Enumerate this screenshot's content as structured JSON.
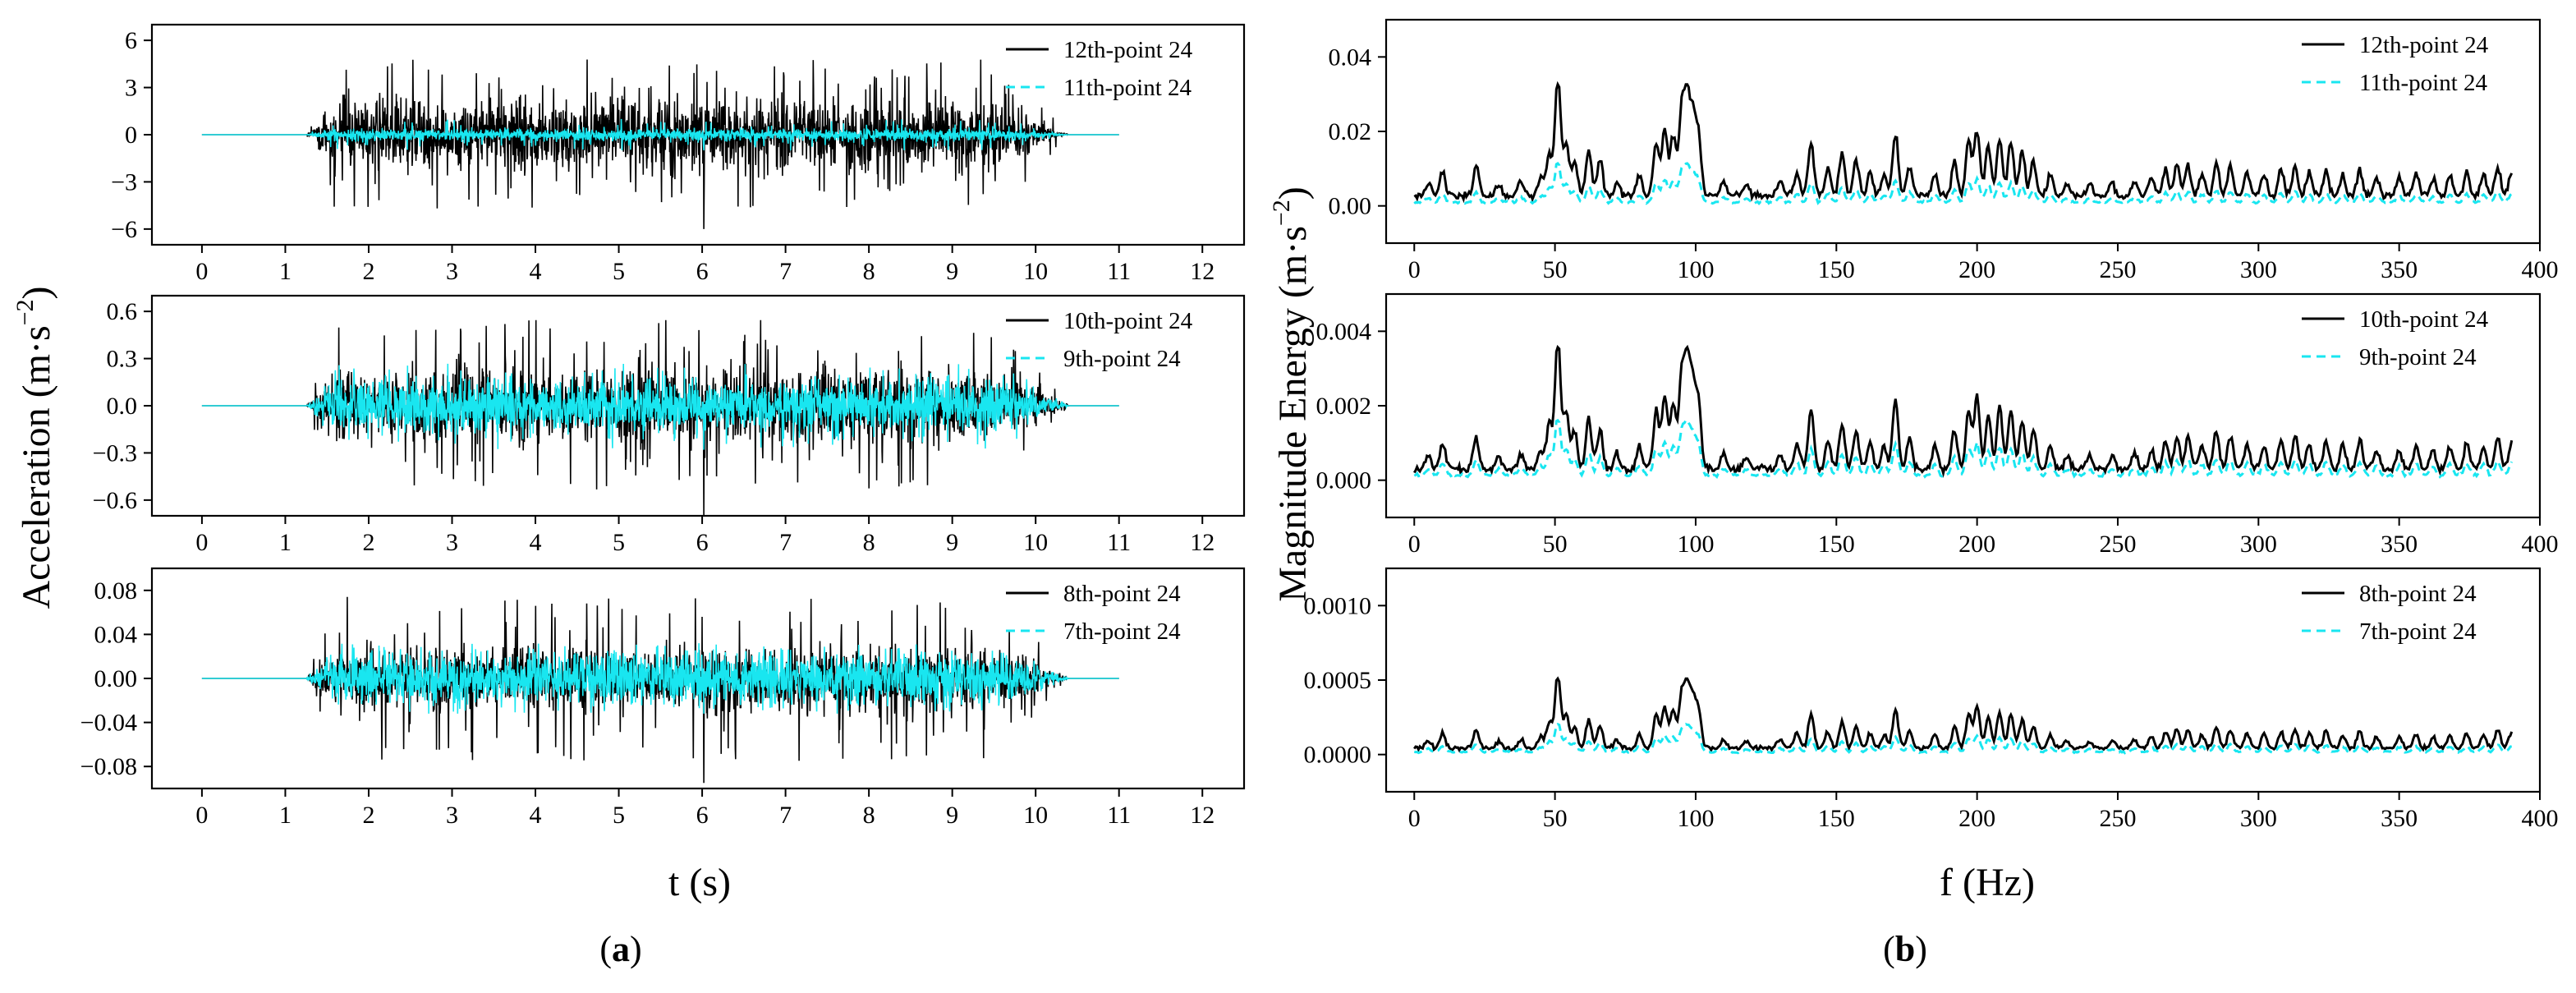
{
  "figure": {
    "left_ylabel": "Acceleration (m·s",
    "left_ylabel_sup": "−2",
    "left_ylabel_end": ")",
    "left_xlabel": "t (s)",
    "right_ylabel": "Magnitude Energy (m·s",
    "right_ylabel_sup": "−2",
    "right_ylabel_end": ")",
    "right_xlabel": "f (Hz)",
    "sub_a_open": "(",
    "sub_a": "a",
    "sub_a_close": ")",
    "sub_b_open": "(",
    "sub_b": "b",
    "sub_b_close": ")"
  },
  "colors": {
    "series_solid": "#000000",
    "series_dashed": "#19e6f0"
  },
  "chart_data": [
    {
      "id": "a1",
      "type": "line",
      "domain": "time",
      "xlabel": "t (s)",
      "xlim": [
        -0.6,
        12.5
      ],
      "xticks": [
        0,
        1,
        2,
        3,
        4,
        5,
        6,
        7,
        8,
        9,
        10,
        11,
        12
      ],
      "xtick_labels": [
        "0",
        "1",
        "2",
        "3",
        "4",
        "5",
        "6",
        "7",
        "8",
        "9",
        "10",
        "11",
        "12"
      ],
      "ylim": [
        -7,
        7
      ],
      "yticks": [
        -6,
        -3,
        0,
        3,
        6
      ],
      "ytick_labels": [
        "−6",
        "−3",
        "0",
        "3",
        "6"
      ],
      "legend_position": "top-right",
      "series": [
        {
          "name": "12th-point 24",
          "style": "solid",
          "amplitude": 2.0,
          "peak_up": 4.8,
          "peak_down": -6.0,
          "x_start": 1.25,
          "x_end": 10.4,
          "x_span": [
            0,
            11
          ]
        },
        {
          "name": "11th-point 24",
          "style": "dashed",
          "amplitude": 0.35,
          "peak_up": 1.0,
          "peak_down": -1.0,
          "x_start": 1.25,
          "x_end": 10.4,
          "x_span": [
            0,
            11
          ]
        }
      ]
    },
    {
      "id": "a2",
      "type": "line",
      "domain": "time",
      "xlabel": "t (s)",
      "xlim": [
        -0.6,
        12.5
      ],
      "xticks": [
        0,
        1,
        2,
        3,
        4,
        5,
        6,
        7,
        8,
        9,
        10,
        11,
        12
      ],
      "xtick_labels": [
        "0",
        "1",
        "2",
        "3",
        "4",
        "5",
        "6",
        "7",
        "8",
        "9",
        "10",
        "11",
        "12"
      ],
      "ylim": [
        -0.7,
        0.7
      ],
      "yticks": [
        -0.6,
        -0.3,
        0,
        0.3,
        0.6
      ],
      "ytick_labels": [
        "−0.6",
        "−0.3",
        "0.0",
        "0.3",
        "0.6"
      ],
      "legend_position": "top-right",
      "series": [
        {
          "name": "10th-point 24",
          "style": "solid",
          "amplitude": 0.2,
          "peak_up": 0.55,
          "peak_down": -0.7,
          "x_start": 1.25,
          "x_end": 10.4,
          "x_span": [
            0,
            11
          ]
        },
        {
          "name": "9th-point 24",
          "style": "dashed",
          "amplitude": 0.14,
          "peak_up": 0.28,
          "peak_down": -0.28,
          "x_start": 1.25,
          "x_end": 10.4,
          "x_span": [
            0,
            11
          ]
        }
      ]
    },
    {
      "id": "a3",
      "type": "line",
      "domain": "time",
      "xlabel": "t (s)",
      "xlim": [
        -0.6,
        12.5
      ],
      "xticks": [
        0,
        1,
        2,
        3,
        4,
        5,
        6,
        7,
        8,
        9,
        10,
        11,
        12
      ],
      "xtick_labels": [
        "0",
        "1",
        "2",
        "3",
        "4",
        "5",
        "6",
        "7",
        "8",
        "9",
        "10",
        "11",
        "12"
      ],
      "ylim": [
        -0.1,
        0.1
      ],
      "yticks": [
        -0.08,
        -0.04,
        0,
        0.04,
        0.08
      ],
      "ytick_labels": [
        "−0.08",
        "−0.04",
        "0.00",
        "0.04",
        "0.08"
      ],
      "legend_position": "top-right",
      "series": [
        {
          "name": "8th-point 24",
          "style": "solid",
          "amplitude": 0.025,
          "peak_up": 0.075,
          "peak_down": -0.095,
          "x_start": 1.25,
          "x_end": 10.4,
          "x_span": [
            0,
            11
          ]
        },
        {
          "name": "7th-point 24",
          "style": "dashed",
          "amplitude": 0.02,
          "peak_up": 0.032,
          "peak_down": -0.032,
          "x_start": 1.25,
          "x_end": 10.4,
          "x_span": [
            0,
            11
          ]
        }
      ]
    },
    {
      "id": "b1",
      "type": "line",
      "domain": "freq",
      "xlabel": "f (Hz)",
      "xlim": [
        -10,
        400
      ],
      "xticks": [
        0,
        50,
        100,
        150,
        200,
        250,
        300,
        350,
        400
      ],
      "xtick_labels": [
        "0",
        "50",
        "100",
        "150",
        "200",
        "250",
        "300",
        "350",
        "400"
      ],
      "ylim": [
        -0.01,
        0.05
      ],
      "yticks": [
        0,
        0.02,
        0.04
      ],
      "ytick_labels": [
        "0.00",
        "0.02",
        "0.04"
      ],
      "legend_position": "top-right",
      "scale": 0.032,
      "series": [
        {
          "name": "12th-point 24",
          "style": "solid",
          "ratio": 1.0
        },
        {
          "name": "11th-point 24",
          "style": "dashed",
          "ratio": 0.35
        }
      ]
    },
    {
      "id": "b2",
      "type": "line",
      "domain": "freq",
      "xlabel": "f (Hz)",
      "xlim": [
        -10,
        400
      ],
      "xticks": [
        0,
        50,
        100,
        150,
        200,
        250,
        300,
        350,
        400
      ],
      "xtick_labels": [
        "0",
        "50",
        "100",
        "150",
        "200",
        "250",
        "300",
        "350",
        "400"
      ],
      "ylim": [
        -0.001,
        0.005
      ],
      "yticks": [
        0,
        0.002,
        0.004
      ],
      "ytick_labels": [
        "0.000",
        "0.002",
        "0.004"
      ],
      "legend_position": "top-right",
      "scale": 0.0035,
      "series": [
        {
          "name": "10th-point 24",
          "style": "solid",
          "ratio": 1.0
        },
        {
          "name": "9th-point 24",
          "style": "dashed",
          "ratio": 0.45
        }
      ]
    },
    {
      "id": "b3",
      "type": "line",
      "domain": "freq",
      "xlabel": "f (Hz)",
      "xlim": [
        -10,
        400
      ],
      "xticks": [
        0,
        50,
        100,
        150,
        200,
        250,
        300,
        350,
        400
      ],
      "xtick_labels": [
        "0",
        "50",
        "100",
        "150",
        "200",
        "250",
        "300",
        "350",
        "400"
      ],
      "ylim": [
        -0.00025,
        0.00125
      ],
      "yticks": [
        0,
        0.0005,
        0.001
      ],
      "ytick_labels": [
        "0.0000",
        "0.0005",
        "0.0010"
      ],
      "legend_position": "top-right",
      "scale": 0.0005,
      "series": [
        {
          "name": "8th-point 24",
          "style": "solid",
          "ratio": 1.0
        },
        {
          "name": "7th-point 24",
          "style": "dashed",
          "ratio": 0.4
        }
      ]
    }
  ],
  "spectrum_peaks": [
    [
      5,
      0.1
    ],
    [
      10,
      0.2
    ],
    [
      22,
      0.25
    ],
    [
      30,
      0.1
    ],
    [
      38,
      0.12
    ],
    [
      45,
      0.15
    ],
    [
      48,
      0.35
    ],
    [
      51,
      1.0
    ],
    [
      54,
      0.45
    ],
    [
      57,
      0.28
    ],
    [
      62,
      0.38
    ],
    [
      66,
      0.3
    ],
    [
      72,
      0.12
    ],
    [
      80,
      0.18
    ],
    [
      86,
      0.45
    ],
    [
      89,
      0.55
    ],
    [
      92,
      0.5
    ],
    [
      95,
      0.7
    ],
    [
      97,
      0.78
    ],
    [
      99,
      0.6
    ],
    [
      101,
      0.5
    ],
    [
      110,
      0.12
    ],
    [
      118,
      0.1
    ],
    [
      130,
      0.12
    ],
    [
      136,
      0.2
    ],
    [
      141,
      0.45
    ],
    [
      147,
      0.22
    ],
    [
      152,
      0.35
    ],
    [
      157,
      0.3
    ],
    [
      162,
      0.2
    ],
    [
      167,
      0.18
    ],
    [
      171,
      0.52
    ],
    [
      176,
      0.25
    ],
    [
      185,
      0.18
    ],
    [
      192,
      0.3
    ],
    [
      197,
      0.45
    ],
    [
      200,
      0.55
    ],
    [
      204,
      0.42
    ],
    [
      208,
      0.48
    ],
    [
      212,
      0.45
    ],
    [
      216,
      0.38
    ],
    [
      220,
      0.3
    ],
    [
      226,
      0.18
    ],
    [
      232,
      0.1
    ],
    [
      240,
      0.1
    ],
    [
      248,
      0.1
    ],
    [
      256,
      0.12
    ],
    [
      262,
      0.15
    ],
    [
      267,
      0.22
    ],
    [
      271,
      0.25
    ],
    [
      275,
      0.25
    ],
    [
      280,
      0.18
    ],
    [
      285,
      0.28
    ],
    [
      290,
      0.25
    ],
    [
      296,
      0.2
    ],
    [
      302,
      0.18
    ],
    [
      308,
      0.22
    ],
    [
      313,
      0.25
    ],
    [
      318,
      0.2
    ],
    [
      324,
      0.22
    ],
    [
      330,
      0.18
    ],
    [
      336,
      0.22
    ],
    [
      342,
      0.15
    ],
    [
      350,
      0.15
    ],
    [
      356,
      0.18
    ],
    [
      362,
      0.15
    ],
    [
      368,
      0.18
    ],
    [
      374,
      0.2
    ],
    [
      380,
      0.18
    ],
    [
      385,
      0.25
    ],
    [
      390,
      0.2
    ]
  ]
}
